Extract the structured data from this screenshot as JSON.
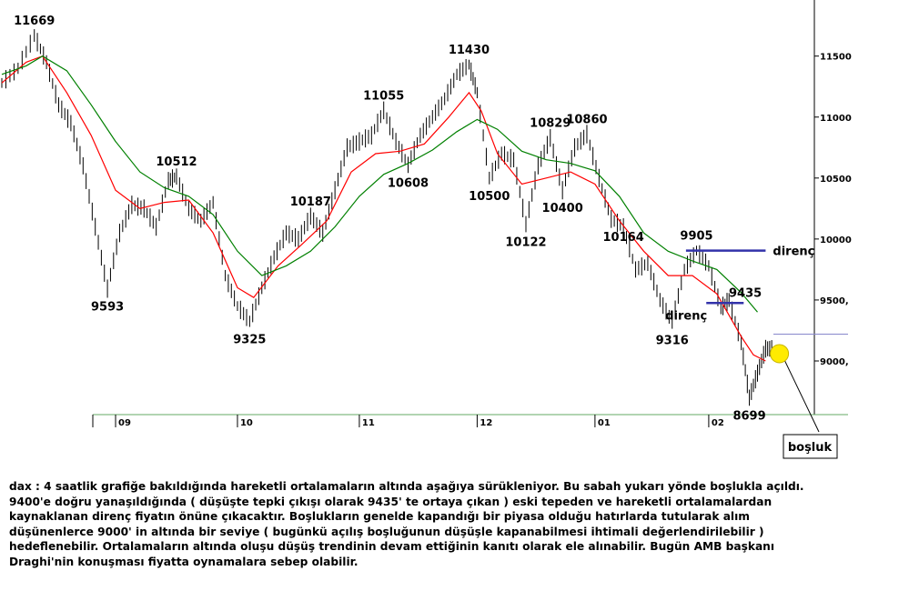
{
  "chart_data": {
    "type": "line",
    "title": "",
    "timeframe": "4 saatlik",
    "xlabel": "",
    "ylabel": "",
    "ylim": [
      8560,
      11960
    ],
    "grid": false,
    "legend": "none",
    "x_ticks": [
      {
        "label": "09",
        "t": 0.14
      },
      {
        "label": "10",
        "t": 0.29
      },
      {
        "label": "11",
        "t": 0.44
      },
      {
        "label": "12",
        "t": 0.585
      },
      {
        "label": "01",
        "t": 0.73
      },
      {
        "label": "02",
        "t": 0.87
      }
    ],
    "y_ticks": [
      {
        "label": "9000,",
        "value": 9000
      },
      {
        "label": "9500,",
        "value": 9500
      },
      {
        "label": "10000",
        "value": 10000
      },
      {
        "label": "10500",
        "value": 10500
      },
      {
        "label": "11000",
        "value": 11000
      },
      {
        "label": "11500",
        "value": 11500
      }
    ],
    "series": [
      {
        "color": "#000000",
        "style": "ohlc-bars",
        "points": [
          [
            0.0,
            11280
          ],
          [
            0.02,
            11400
          ],
          [
            0.04,
            11669
          ],
          [
            0.055,
            11450
          ],
          [
            0.07,
            11100
          ],
          [
            0.085,
            10950
          ],
          [
            0.1,
            10600
          ],
          [
            0.115,
            10100
          ],
          [
            0.13,
            9593
          ],
          [
            0.145,
            10050
          ],
          [
            0.16,
            10280
          ],
          [
            0.175,
            10250
          ],
          [
            0.19,
            10100
          ],
          [
            0.205,
            10480
          ],
          [
            0.215,
            10512
          ],
          [
            0.23,
            10250
          ],
          [
            0.245,
            10150
          ],
          [
            0.26,
            10300
          ],
          [
            0.275,
            9700
          ],
          [
            0.29,
            9450
          ],
          [
            0.305,
            9325
          ],
          [
            0.32,
            9600
          ],
          [
            0.335,
            9850
          ],
          [
            0.35,
            10050
          ],
          [
            0.365,
            10000
          ],
          [
            0.38,
            10187
          ],
          [
            0.395,
            10050
          ],
          [
            0.41,
            10400
          ],
          [
            0.425,
            10750
          ],
          [
            0.44,
            10800
          ],
          [
            0.455,
            10850
          ],
          [
            0.47,
            11055
          ],
          [
            0.485,
            10800
          ],
          [
            0.5,
            10608
          ],
          [
            0.515,
            10850
          ],
          [
            0.53,
            11000
          ],
          [
            0.545,
            11150
          ],
          [
            0.56,
            11350
          ],
          [
            0.575,
            11430
          ],
          [
            0.585,
            11200
          ],
          [
            0.6,
            10500
          ],
          [
            0.615,
            10700
          ],
          [
            0.63,
            10650
          ],
          [
            0.645,
            10122
          ],
          [
            0.66,
            10600
          ],
          [
            0.675,
            10829
          ],
          [
            0.69,
            10400
          ],
          [
            0.705,
            10750
          ],
          [
            0.72,
            10860
          ],
          [
            0.735,
            10500
          ],
          [
            0.75,
            10164
          ],
          [
            0.765,
            10100
          ],
          [
            0.78,
            9750
          ],
          [
            0.795,
            9800
          ],
          [
            0.81,
            9500
          ],
          [
            0.825,
            9316
          ],
          [
            0.84,
            9750
          ],
          [
            0.855,
            9905
          ],
          [
            0.87,
            9780
          ],
          [
            0.885,
            9435
          ],
          [
            0.895,
            9500
          ],
          [
            0.91,
            9150
          ],
          [
            0.92,
            8699
          ],
          [
            0.93,
            8900
          ],
          [
            0.94,
            9100
          ]
        ]
      },
      {
        "color": "#ff0000",
        "style": "moving-average",
        "points": [
          [
            0.0,
            11280
          ],
          [
            0.03,
            11450
          ],
          [
            0.05,
            11500
          ],
          [
            0.08,
            11200
          ],
          [
            0.11,
            10850
          ],
          [
            0.14,
            10400
          ],
          [
            0.17,
            10250
          ],
          [
            0.2,
            10300
          ],
          [
            0.23,
            10320
          ],
          [
            0.26,
            10050
          ],
          [
            0.29,
            9600
          ],
          [
            0.31,
            9520
          ],
          [
            0.34,
            9780
          ],
          [
            0.37,
            9960
          ],
          [
            0.4,
            10150
          ],
          [
            0.43,
            10550
          ],
          [
            0.46,
            10700
          ],
          [
            0.49,
            10720
          ],
          [
            0.52,
            10780
          ],
          [
            0.55,
            11000
          ],
          [
            0.575,
            11200
          ],
          [
            0.59,
            11050
          ],
          [
            0.61,
            10700
          ],
          [
            0.64,
            10450
          ],
          [
            0.67,
            10500
          ],
          [
            0.7,
            10550
          ],
          [
            0.73,
            10450
          ],
          [
            0.76,
            10150
          ],
          [
            0.79,
            9900
          ],
          [
            0.82,
            9700
          ],
          [
            0.85,
            9700
          ],
          [
            0.88,
            9550
          ],
          [
            0.91,
            9200
          ],
          [
            0.925,
            9050
          ],
          [
            0.94,
            9000
          ]
        ]
      },
      {
        "color": "#008000",
        "style": "moving-average",
        "points": [
          [
            0.0,
            11350
          ],
          [
            0.03,
            11420
          ],
          [
            0.05,
            11500
          ],
          [
            0.08,
            11380
          ],
          [
            0.11,
            11100
          ],
          [
            0.14,
            10800
          ],
          [
            0.17,
            10550
          ],
          [
            0.2,
            10420
          ],
          [
            0.23,
            10350
          ],
          [
            0.26,
            10200
          ],
          [
            0.29,
            9900
          ],
          [
            0.32,
            9700
          ],
          [
            0.35,
            9780
          ],
          [
            0.38,
            9900
          ],
          [
            0.41,
            10100
          ],
          [
            0.44,
            10350
          ],
          [
            0.47,
            10530
          ],
          [
            0.5,
            10620
          ],
          [
            0.53,
            10730
          ],
          [
            0.56,
            10880
          ],
          [
            0.585,
            10980
          ],
          [
            0.61,
            10900
          ],
          [
            0.64,
            10720
          ],
          [
            0.67,
            10650
          ],
          [
            0.7,
            10620
          ],
          [
            0.73,
            10560
          ],
          [
            0.76,
            10350
          ],
          [
            0.79,
            10050
          ],
          [
            0.82,
            9900
          ],
          [
            0.85,
            9820
          ],
          [
            0.88,
            9750
          ],
          [
            0.91,
            9560
          ],
          [
            0.93,
            9400
          ]
        ]
      }
    ],
    "annotations": [
      {
        "text": "11669",
        "x": 0.04,
        "value": 11669,
        "pos": "above"
      },
      {
        "text": "9593",
        "x": 0.13,
        "value": 9593,
        "pos": "below"
      },
      {
        "text": "10512",
        "x": 0.215,
        "value": 10512,
        "pos": "above"
      },
      {
        "text": "9325",
        "x": 0.305,
        "value": 9325,
        "pos": "below"
      },
      {
        "text": "10187",
        "x": 0.38,
        "value": 10187,
        "pos": "above"
      },
      {
        "text": "11055",
        "x": 0.47,
        "value": 11055,
        "pos": "above"
      },
      {
        "text": "10608",
        "x": 0.5,
        "value": 10608,
        "pos": "below"
      },
      {
        "text": "11430",
        "x": 0.575,
        "value": 11430,
        "pos": "above"
      },
      {
        "text": "10500",
        "x": 0.6,
        "value": 10500,
        "pos": "below"
      },
      {
        "text": "10122",
        "x": 0.645,
        "value": 10122,
        "pos": "below"
      },
      {
        "text": "10829",
        "x": 0.675,
        "value": 10829,
        "pos": "above"
      },
      {
        "text": "10400",
        "x": 0.69,
        "value": 10400,
        "pos": "below"
      },
      {
        "text": "10860",
        "x": 0.72,
        "value": 10860,
        "pos": "above"
      },
      {
        "text": "10164",
        "x": 0.765,
        "value": 10164,
        "pos": "below"
      },
      {
        "text": "9905",
        "x": 0.855,
        "value": 9905,
        "pos": "above"
      },
      {
        "text": "9316",
        "x": 0.825,
        "value": 9316,
        "pos": "below"
      },
      {
        "text": "9435",
        "x": 0.915,
        "value": 9435,
        "pos": "above"
      },
      {
        "text": "8699",
        "x": 0.92,
        "value": 8699,
        "pos": "below"
      }
    ],
    "resistance_lines": [
      {
        "label": "direnç",
        "value": 9905,
        "x_start": 0.842,
        "x_end": 0.94,
        "color": "#3333aa"
      },
      {
        "label": "direnç",
        "value": 9475,
        "x_start": 0.867,
        "x_end": 0.913,
        "color": "#3333aa"
      }
    ],
    "gap": {
      "label": "boşluk",
      "value": 9060,
      "line_value": 9220,
      "marker_color": "#ffeb00"
    }
  },
  "commentary": "dax : 4 saatlik grafiğe bakıldığında hareketli ortalamaların altında aşağıya sürükleniyor. Bu sabah yukarı yönde boşlukla açıldı.\n9400'e doğru yanaşıldığında ( düşüşte tepki çıkışı olarak 9435' te ortaya çıkan ) eski tepeden ve hareketli ortalamalardan\nkaynaklanan direnç fiyatın önüne çıkacaktır. Boşlukların genelde kapandığı bir piyasa olduğu hatırlarda tutularak alım\ndüşünenlerce 9000' in altında bir seviye ( bugünkü açılış boşluğunun düşüşle kapanabilmesi ihtimali değerlendirilebilir )\nhedeflenebilir. Ortalamaların altında oluşu düşüş trendinin devam ettiğinin kanıtı olarak ele alınabilir. Bugün AMB başkanı\nDraghi'nin konuşması fiyatta oynamalara sebep olabilir."
}
